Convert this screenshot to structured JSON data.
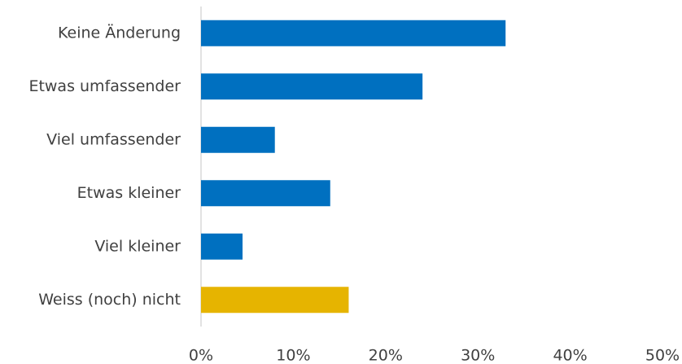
{
  "chart_data": {
    "type": "barh",
    "categories": [
      "Keine Änderung",
      "Etwas umfassender",
      "Viel umfassender",
      "Etwas kleiner",
      "Viel kleiner",
      "Weiss (noch) nicht"
    ],
    "values": [
      33,
      24,
      8,
      14,
      4.5,
      16
    ],
    "colors": [
      "#0070c0",
      "#0070c0",
      "#0070c0",
      "#0070c0",
      "#0070c0",
      "#e6b400"
    ],
    "xlim": [
      0,
      50
    ],
    "xticks": [
      {
        "value": 0,
        "label": "0%"
      },
      {
        "value": 10,
        "label": "10%"
      },
      {
        "value": 20,
        "label": "20%"
      },
      {
        "value": 30,
        "label": "30%"
      },
      {
        "value": 40,
        "label": "40%"
      },
      {
        "value": 50,
        "label": "50%"
      }
    ],
    "grid": false
  }
}
